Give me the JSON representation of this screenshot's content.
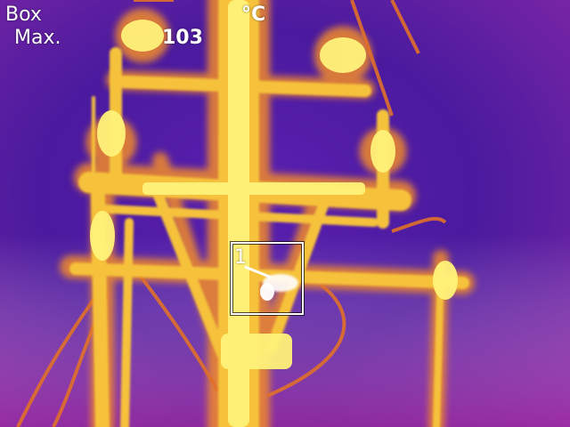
{
  "hud": {
    "mode_label": "Box",
    "measure_label": "Max.",
    "value": "103",
    "unit": "°C"
  },
  "measure_box": {
    "label": "1"
  },
  "palette": {
    "background_dark": "#3a1a8c",
    "background_mid": "#7a1fa8",
    "background_edge": "#a02aa0",
    "hot_glow": "#f08a2a",
    "hot_mid": "#f6c23a",
    "hot_core": "#fff27a",
    "hottest": "#ffffff"
  }
}
